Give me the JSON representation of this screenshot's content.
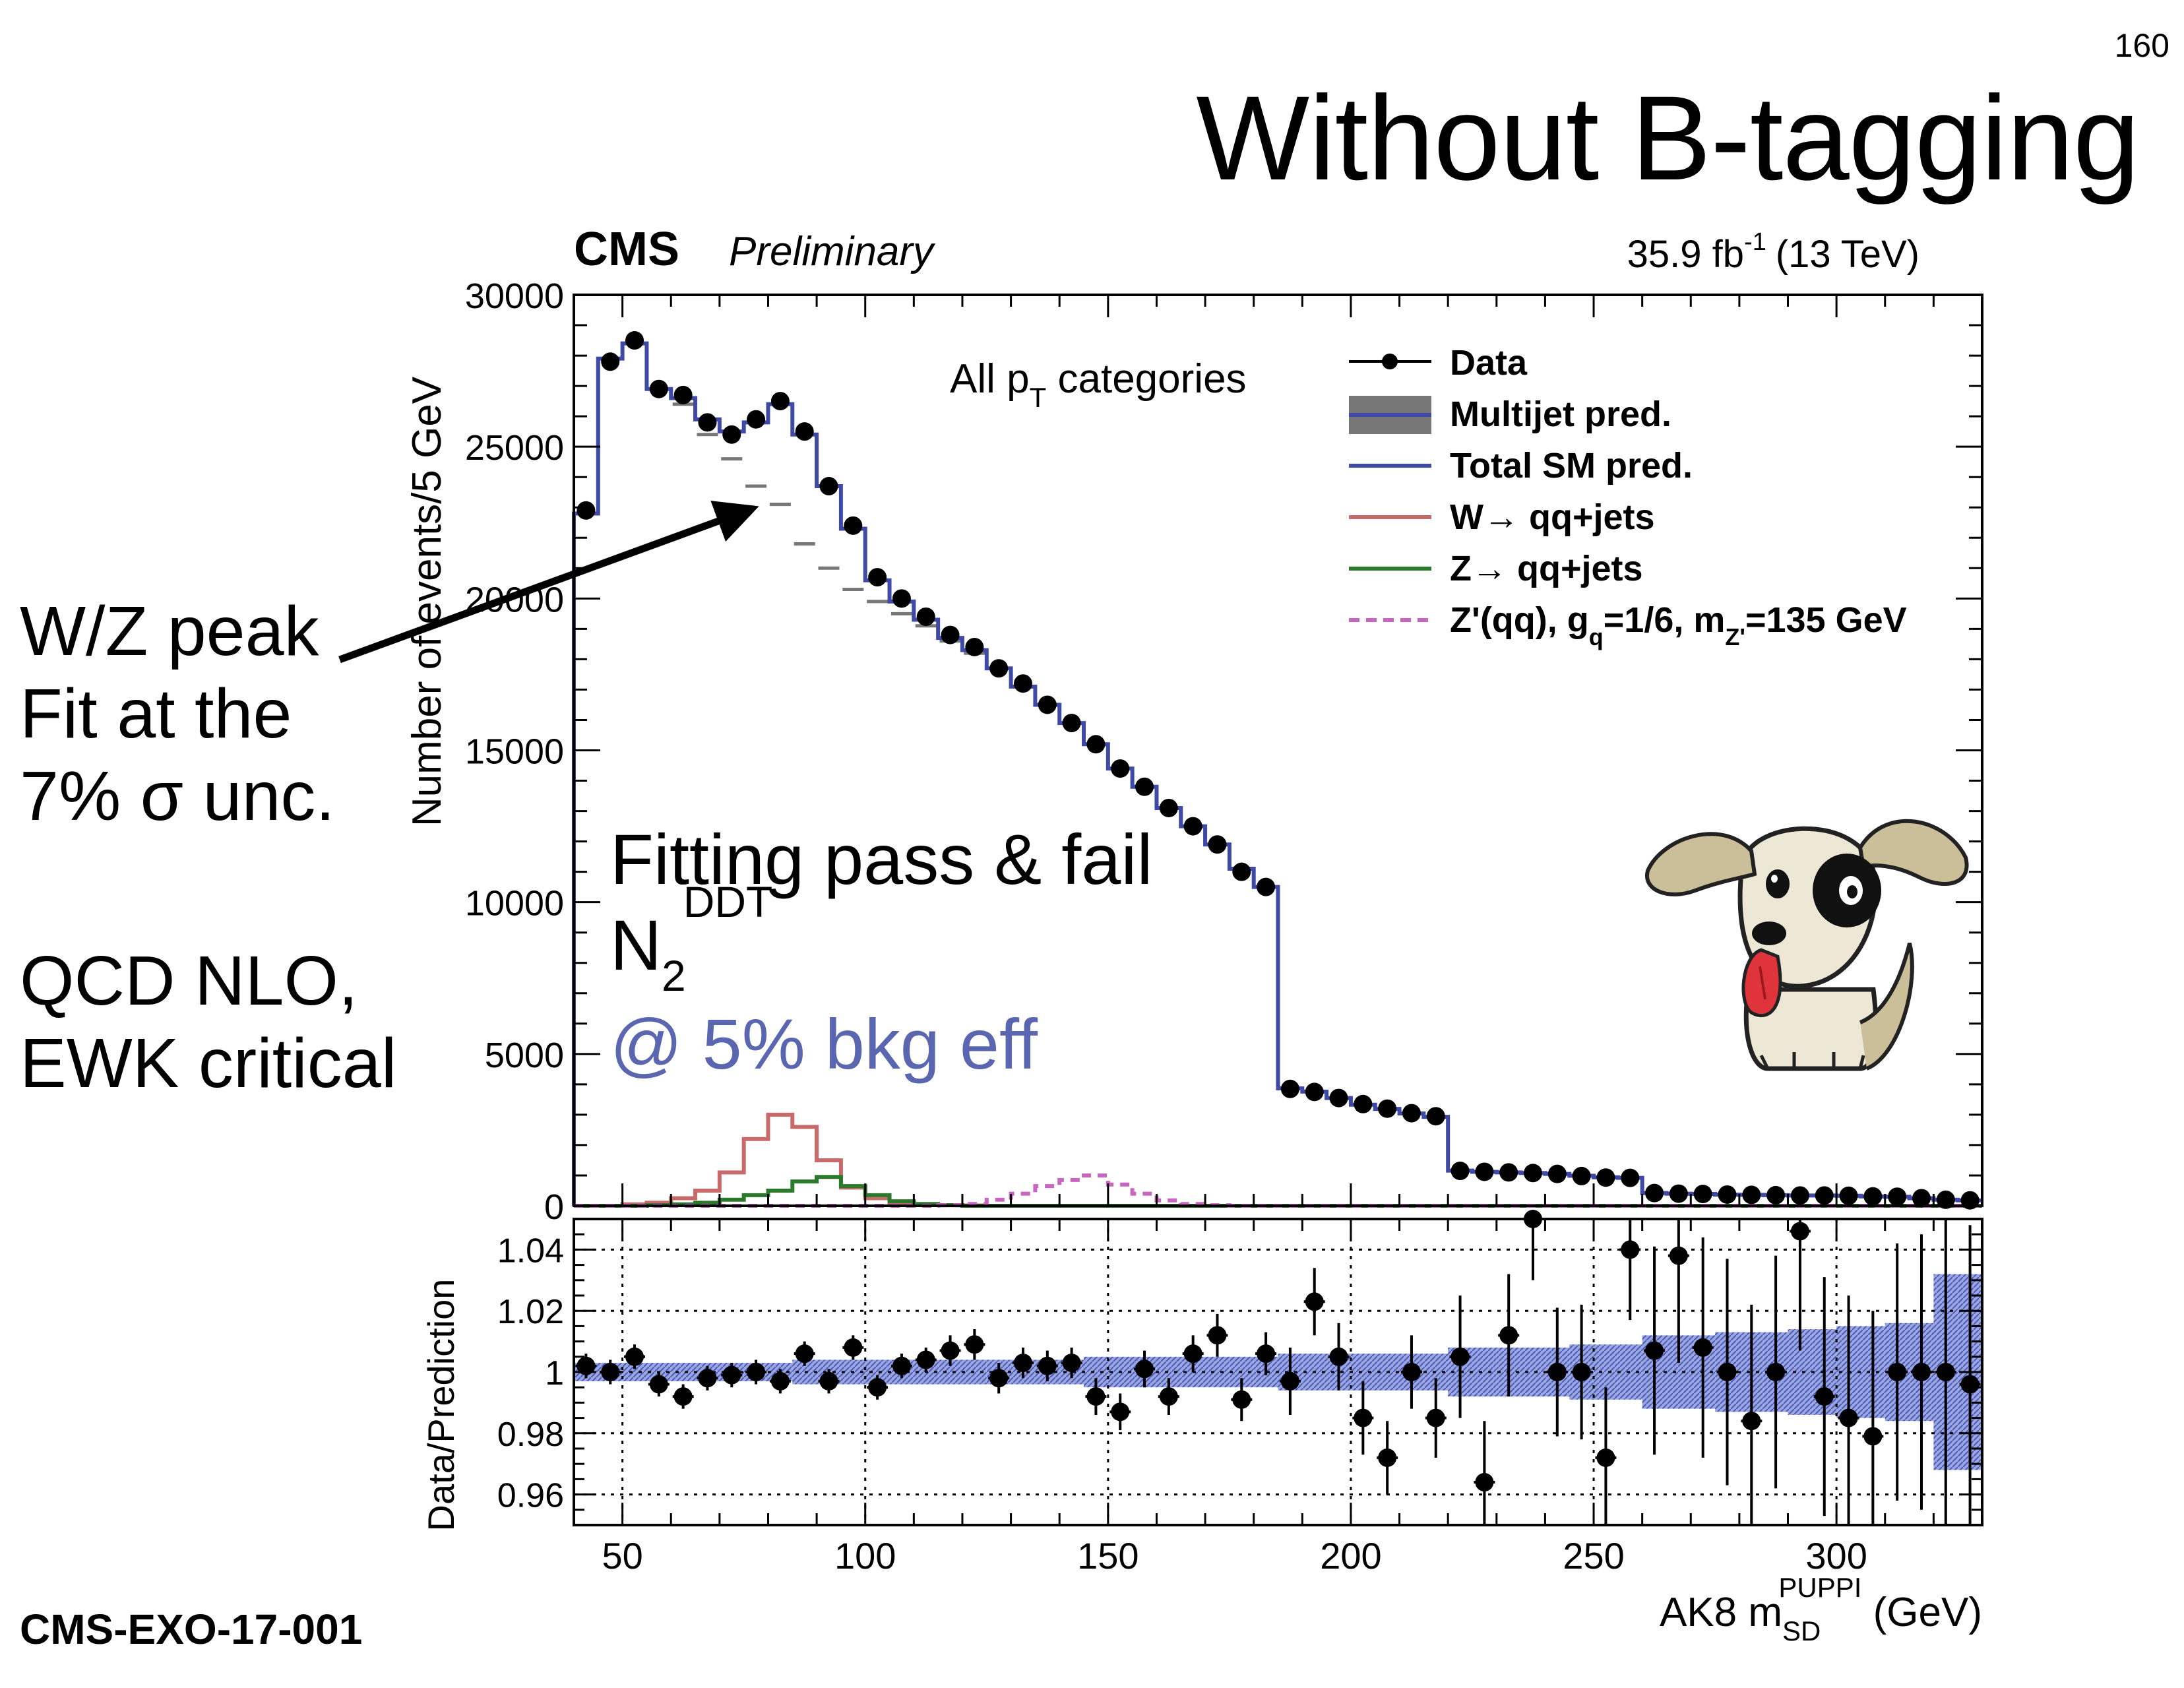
{
  "slide": {
    "number": "160",
    "title": "Without B-tagging",
    "note_wz": [
      "W/Z peak",
      "Fit at the",
      "7% σ unc."
    ],
    "note_qcd": [
      "QCD NLO,",
      "EWK critical"
    ],
    "reference": "CMS-EXO-17-001"
  },
  "chart_data": {
    "type": "histogram",
    "header_left": "CMS",
    "header_left_italic": "Preliminary",
    "header_right": {
      "lumi": "35.9 fb",
      "lumi_exp": "-1",
      "energy": "(13 TeV)"
    },
    "category_label": {
      "base": "All p",
      "sub": "T",
      "rest": " categories"
    },
    "overlay": {
      "line1": "Fitting pass & fail",
      "n2_base": "N",
      "n2_sub": "2",
      "n2_sup": "DDT",
      "efficiency": "@ 5% bkg eff"
    },
    "xlabel": {
      "base": "AK8 m",
      "sub": "SD",
      "sup": "PUPPI",
      "unit": " (GeV)"
    },
    "ylabel": "Number of events/5 GeV",
    "ratio_ylabel": "Data/Prediction",
    "xlim": [
      40,
      330
    ],
    "ylim": [
      0,
      30000
    ],
    "ratio_ylim": [
      0.95,
      1.05
    ],
    "x_ticks": [
      50,
      100,
      150,
      200,
      250,
      300
    ],
    "x_tick_labels": [
      "50",
      "100",
      "150",
      "200",
      "250",
      "300"
    ],
    "y_ticks": [
      0,
      5000,
      10000,
      15000,
      20000,
      25000,
      30000
    ],
    "y_tick_labels": [
      "0",
      "5000",
      "10000",
      "15000",
      "20000",
      "25000",
      "30000"
    ],
    "ratio_y_ticks": [
      0.96,
      0.98,
      1.0,
      1.02,
      1.04
    ],
    "ratio_y_tick_labels": [
      "0.96",
      "0.98",
      "1",
      "1.02",
      "1.04"
    ],
    "legend_position": "top-right",
    "legend": [
      {
        "label": "Data",
        "style": "marker"
      },
      {
        "label": "Multijet pred.",
        "style": "band"
      },
      {
        "label": "Total SM pred.",
        "style": "line"
      },
      {
        "label": "W→ qq+jets",
        "style": "line"
      },
      {
        "label": "Z→ qq+jets",
        "style": "line"
      },
      {
        "label": "Z'(qq), g",
        "style": "dashed",
        "sub": "q",
        "mid": "=1/6, m",
        "sub2": "Z'",
        "tail": "=135 GeV"
      }
    ],
    "bin_edges": [
      40,
      45,
      50,
      55,
      60,
      65,
      70,
      75,
      80,
      85,
      90,
      95,
      100,
      105,
      110,
      115,
      120,
      125,
      130,
      135,
      140,
      145,
      150,
      155,
      160,
      165,
      170,
      175,
      180,
      185,
      190,
      195,
      200,
      205,
      210,
      215,
      220,
      225,
      230,
      235,
      240,
      245,
      250,
      255,
      260,
      265,
      270,
      275,
      280,
      285,
      290,
      295,
      300,
      305,
      310,
      315,
      320,
      325,
      330
    ],
    "data_x": [
      42.5,
      47.5,
      52.5,
      57.5,
      62.5,
      67.5,
      72.5,
      77.5,
      82.5,
      87.5,
      92.5,
      97.5,
      102.5,
      107.5,
      112.5,
      117.5,
      122.5,
      127.5,
      132.5,
      137.5,
      142.5,
      147.5,
      152.5,
      157.5,
      162.5,
      167.5,
      172.5,
      177.5,
      182.5,
      187.5,
      192.5,
      197.5,
      202.5,
      207.5,
      212.5,
      217.5,
      222.5,
      227.5,
      232.5,
      237.5,
      242.5,
      247.5,
      252.5,
      257.5,
      262.5,
      267.5,
      272.5,
      277.5,
      282.5,
      287.5,
      292.5,
      297.5,
      302.5,
      307.5,
      312.5,
      317.5,
      322.5,
      327.5
    ],
    "data_y": [
      22900,
      27800,
      28500,
      26900,
      26700,
      25800,
      25400,
      25900,
      26500,
      25500,
      23700,
      22400,
      20700,
      20000,
      19400,
      18800,
      18400,
      17700,
      17200,
      16500,
      15900,
      15200,
      14400,
      13800,
      13100,
      12500,
      11900,
      11000,
      10500,
      3850,
      3750,
      3550,
      3350,
      3200,
      3050,
      2950,
      1150,
      1120,
      1100,
      1080,
      1050,
      980,
      930,
      920,
      420,
      400,
      390,
      370,
      360,
      350,
      340,
      340,
      330,
      310,
      300,
      250,
      200,
      180
    ],
    "total_sm": [
      22800,
      27900,
      28400,
      26900,
      26600,
      25900,
      25500,
      25800,
      26400,
      25400,
      23700,
      22300,
      20600,
      19900,
      19300,
      18700,
      18300,
      17700,
      17100,
      16500,
      15900,
      15200,
      14400,
      13800,
      13100,
      12500,
      11900,
      11100,
      10500,
      3870,
      3760,
      3550,
      3330,
      3190,
      3040,
      2930,
      1160,
      1120,
      1100,
      1080,
      1050,
      990,
      940,
      920,
      420,
      400,
      390,
      370,
      360,
      350,
      340,
      340,
      330,
      310,
      300,
      250,
      200,
      180
    ],
    "multijet": [
      22800,
      27900,
      28400,
      26900,
      26400,
      25400,
      24600,
      23700,
      23100,
      21800,
      21000,
      20300,
      19900,
      19500,
      19100,
      18600,
      18200,
      17700,
      17100,
      16500,
      15900,
      15200,
      14400,
      13800,
      13100,
      12500,
      11900,
      11100,
      10500,
      3870,
      3760,
      3550,
      3330,
      3190,
      3040,
      2930,
      1160,
      1120,
      1100,
      1080,
      1050,
      990,
      940,
      920,
      420,
      400,
      390,
      370,
      360,
      350,
      340,
      340,
      330,
      310,
      300,
      250,
      200,
      180
    ],
    "w_qqjets": [
      0,
      0,
      50,
      100,
      250,
      500,
      1100,
      2200,
      3000,
      2600,
      1500,
      600,
      250,
      100,
      50,
      20,
      10,
      0,
      0,
      0,
      0,
      0,
      0,
      0,
      0,
      0,
      0,
      0,
      0,
      0,
      0,
      0,
      0,
      0,
      0,
      0,
      0,
      0,
      0,
      0,
      0,
      0,
      0,
      0,
      0,
      0,
      0,
      0,
      0,
      0,
      0,
      0,
      0,
      0,
      0,
      0,
      0,
      0
    ],
    "z_qqjets": [
      0,
      0,
      0,
      20,
      50,
      100,
      200,
      350,
      500,
      800,
      950,
      650,
      350,
      150,
      60,
      20,
      0,
      0,
      0,
      0,
      0,
      0,
      0,
      0,
      0,
      0,
      0,
      0,
      0,
      0,
      0,
      0,
      0,
      0,
      0,
      0,
      0,
      0,
      0,
      0,
      0,
      0,
      0,
      0,
      0,
      0,
      0,
      0,
      0,
      0,
      0,
      0,
      0,
      0,
      0,
      0,
      0,
      0
    ],
    "zprime": [
      0,
      0,
      0,
      0,
      0,
      0,
      0,
      0,
      0,
      0,
      0,
      0,
      0,
      0,
      0,
      20,
      60,
      200,
      400,
      650,
      850,
      1000,
      700,
      400,
      180,
      60,
      20,
      0,
      0,
      0,
      0,
      0,
      0,
      0,
      0,
      0,
      0,
      0,
      0,
      0,
      0,
      0,
      0,
      0,
      0,
      0,
      0,
      0,
      0,
      0,
      0,
      0,
      0,
      0,
      0,
      0,
      0,
      0
    ],
    "ratio_values": [
      1.002,
      1.0,
      1.005,
      0.996,
      0.992,
      0.998,
      0.999,
      1.0,
      0.997,
      1.006,
      0.997,
      1.008,
      0.995,
      1.002,
      1.004,
      1.007,
      1.009,
      0.998,
      1.003,
      1.002,
      1.003,
      0.992,
      0.987,
      1.001,
      0.992,
      1.006,
      1.012,
      0.991,
      1.006,
      0.997,
      1.023,
      1.005,
      0.985,
      0.972,
      1.0,
      0.985,
      1.005,
      0.964,
      1.012,
      1.05,
      1.0,
      1.0,
      0.972,
      1.04,
      1.007,
      1.038,
      1.008,
      1.0,
      0.984,
      1.0,
      1.046,
      0.992,
      0.985,
      0.979,
      1.0,
      1.0,
      1.0,
      0.996
    ],
    "ratio_errors": [
      0.004,
      0.004,
      0.004,
      0.004,
      0.004,
      0.004,
      0.004,
      0.004,
      0.004,
      0.004,
      0.004,
      0.004,
      0.004,
      0.004,
      0.004,
      0.005,
      0.005,
      0.005,
      0.005,
      0.005,
      0.005,
      0.006,
      0.006,
      0.006,
      0.006,
      0.006,
      0.007,
      0.007,
      0.007,
      0.011,
      0.011,
      0.011,
      0.012,
      0.012,
      0.012,
      0.013,
      0.02,
      0.02,
      0.02,
      0.02,
      0.021,
      0.022,
      0.023,
      0.023,
      0.034,
      0.035,
      0.036,
      0.037,
      0.038,
      0.038,
      0.039,
      0.039,
      0.04,
      0.041,
      0.042,
      0.045,
      0.05,
      0.052
    ],
    "ratio_band_halfwidth": [
      0.003,
      0.003,
      0.003,
      0.003,
      0.003,
      0.003,
      0.003,
      0.003,
      0.003,
      0.004,
      0.004,
      0.004,
      0.004,
      0.004,
      0.004,
      0.004,
      0.004,
      0.004,
      0.004,
      0.004,
      0.004,
      0.005,
      0.005,
      0.005,
      0.005,
      0.005,
      0.005,
      0.005,
      0.005,
      0.006,
      0.006,
      0.006,
      0.006,
      0.006,
      0.006,
      0.006,
      0.008,
      0.008,
      0.008,
      0.008,
      0.008,
      0.009,
      0.009,
      0.009,
      0.012,
      0.012,
      0.012,
      0.013,
      0.013,
      0.013,
      0.014,
      0.014,
      0.015,
      0.015,
      0.016,
      0.016,
      0.032,
      0.032
    ],
    "colors": {
      "data": "#000000",
      "multijet_band": "#777777",
      "total_sm": "#3f4aa6",
      "w": "#c96a6a",
      "z": "#2b7a2b",
      "zprime": "#c766c0",
      "ratio_band": "#6a78c8",
      "efficiency_text": "#5a66b0"
    }
  }
}
